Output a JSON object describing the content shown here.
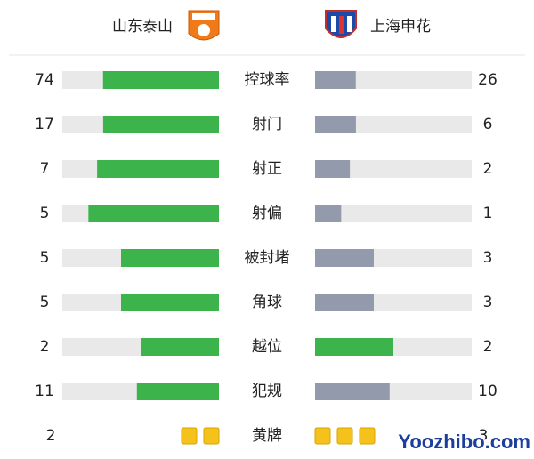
{
  "header": {
    "home": "山东泰山",
    "away": "上海申花"
  },
  "stats": [
    {
      "label": "控球率",
      "home": 74,
      "away": 26
    },
    {
      "label": "射门",
      "home": 17,
      "away": 6
    },
    {
      "label": "射正",
      "home": 7,
      "away": 2
    },
    {
      "label": "射偏",
      "home": 5,
      "away": 1
    },
    {
      "label": "被封堵",
      "home": 5,
      "away": 3
    },
    {
      "label": "角球",
      "home": 5,
      "away": 3
    },
    {
      "label": "越位",
      "home": 2,
      "away": 2
    },
    {
      "label": "犯规",
      "home": 11,
      "away": 10
    }
  ],
  "cards": {
    "label": "黄牌",
    "home": 2,
    "away": 3,
    "color": "#f5c21b"
  },
  "colors": {
    "leading": "#3cb44b",
    "trailing": "#939aab",
    "track": "#e9e9e9"
  },
  "watermark": "Yoozhibo.com"
}
